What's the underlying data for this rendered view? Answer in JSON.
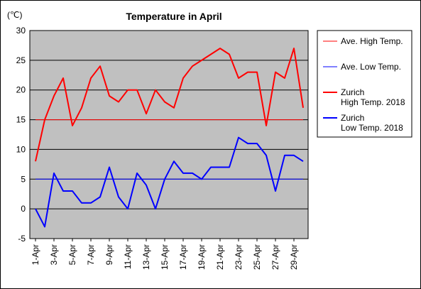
{
  "chart_data": {
    "type": "line",
    "title": "Temperature in April",
    "ylabel": "(℃)",
    "ylim": [
      -5,
      30
    ],
    "yticks": [
      30,
      25,
      20,
      15,
      10,
      5,
      0,
      -5
    ],
    "x": [
      1,
      2,
      3,
      4,
      5,
      6,
      7,
      8,
      9,
      10,
      11,
      12,
      13,
      14,
      15,
      16,
      17,
      18,
      19,
      20,
      21,
      22,
      23,
      24,
      25,
      26,
      27,
      28,
      29,
      30
    ],
    "xtick_labels": [
      "1-Apr",
      "3-Apr",
      "5-Apr",
      "7-Apr",
      "9-Apr",
      "11-Apr",
      "13-Apr",
      "15-Apr",
      "17-Apr",
      "19-Apr",
      "21-Apr",
      "23-Apr",
      "25-Apr",
      "27-Apr",
      "29-Apr"
    ],
    "xtick_days": [
      1,
      3,
      5,
      7,
      9,
      11,
      13,
      15,
      17,
      19,
      21,
      23,
      25,
      27,
      29
    ],
    "grid": true,
    "legend_placement": "right",
    "colors": {
      "plot_bg": "#c0c0c0",
      "red": "#ff0000",
      "blue": "#0000ff"
    },
    "series": [
      {
        "name": "Ave. High Temp.",
        "style": "thin",
        "color": "#ff0000",
        "values": [
          15,
          15,
          15,
          15,
          15,
          15,
          15,
          15,
          15,
          15,
          15,
          15,
          15,
          15,
          15,
          15,
          15,
          15,
          15,
          15,
          15,
          15,
          15,
          15,
          15,
          15,
          15,
          15,
          15,
          15
        ]
      },
      {
        "name": "Ave. Low Temp.",
        "style": "thin",
        "color": "#0000ff",
        "values": [
          5,
          5,
          5,
          5,
          5,
          5,
          5,
          5,
          5,
          5,
          5,
          5,
          5,
          5,
          5,
          5,
          5,
          5,
          5,
          5,
          5,
          5,
          5,
          5,
          5,
          5,
          5,
          5,
          5,
          5
        ]
      },
      {
        "name": "Zurich\nHigh Temp. 2018",
        "name_lines": [
          "Zurich",
          "High Temp. 2018"
        ],
        "style": "thick",
        "color": "#ff0000",
        "values": [
          8,
          15,
          19,
          22,
          14,
          17,
          22,
          24,
          19,
          18,
          20,
          20,
          16,
          20,
          18,
          17,
          22,
          24,
          25,
          26,
          27,
          26,
          22,
          23,
          23,
          14,
          23,
          22,
          27,
          17
        ]
      },
      {
        "name": "Zurich\nLow Temp. 2018",
        "name_lines": [
          "Zurich",
          "Low Temp. 2018"
        ],
        "style": "thick",
        "color": "#0000ff",
        "values": [
          0,
          -3,
          6,
          3,
          3,
          1,
          1,
          2,
          7,
          2,
          0,
          6,
          4,
          0,
          5,
          8,
          6,
          6,
          5,
          7,
          7,
          7,
          12,
          11,
          11,
          9,
          3,
          9,
          9,
          8
        ]
      }
    ]
  }
}
